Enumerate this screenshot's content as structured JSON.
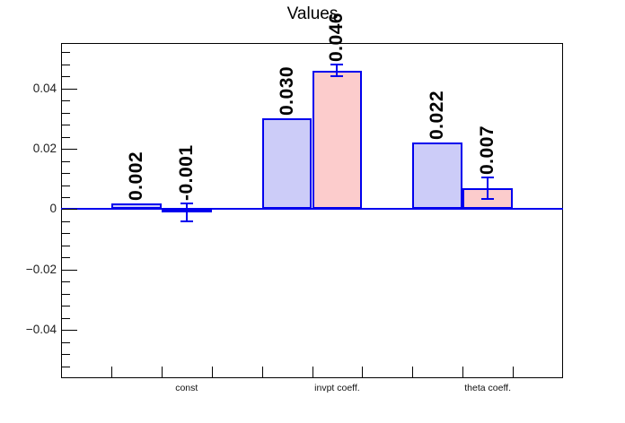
{
  "chart_data": {
    "type": "bar",
    "title": "Values",
    "categories": [
      "const",
      "invpt coeff.",
      "theta coeff."
    ],
    "series": [
      {
        "name": "series-blue",
        "fill_color": "#ccccf8",
        "edge_color": "#0000ee",
        "values": [
          0.002,
          0.03,
          0.022
        ],
        "value_labels": [
          "0.002",
          "0.030",
          "0.022"
        ],
        "errors": [
          null,
          null,
          null
        ]
      },
      {
        "name": "series-pink",
        "fill_color": "#fccccc",
        "edge_color": "#0000ee",
        "values": [
          -0.001,
          0.046,
          0.007
        ],
        "value_labels": [
          "-0.001",
          "0.046",
          "0.007"
        ],
        "errors": [
          0.003,
          0.002,
          0.0035
        ]
      }
    ],
    "xlabel": "",
    "ylabel": "",
    "ylim": [
      -0.056,
      0.0551
    ],
    "yticks": [
      {
        "value": 0.04,
        "label": "0.04"
      },
      {
        "value": 0.02,
        "label": "0.02"
      },
      {
        "value": 0,
        "label": "0"
      },
      {
        "value": -0.02,
        "label": "−0.02"
      },
      {
        "value": -0.04,
        "label": "−0.04"
      }
    ],
    "minor_tick_step": 0.004,
    "baseline_value": 0,
    "grid": false,
    "legend": "none",
    "colors": {
      "axis": "#000000",
      "tick_label": "#202020",
      "value_label": "#000000",
      "background": "#ffffff"
    }
  }
}
